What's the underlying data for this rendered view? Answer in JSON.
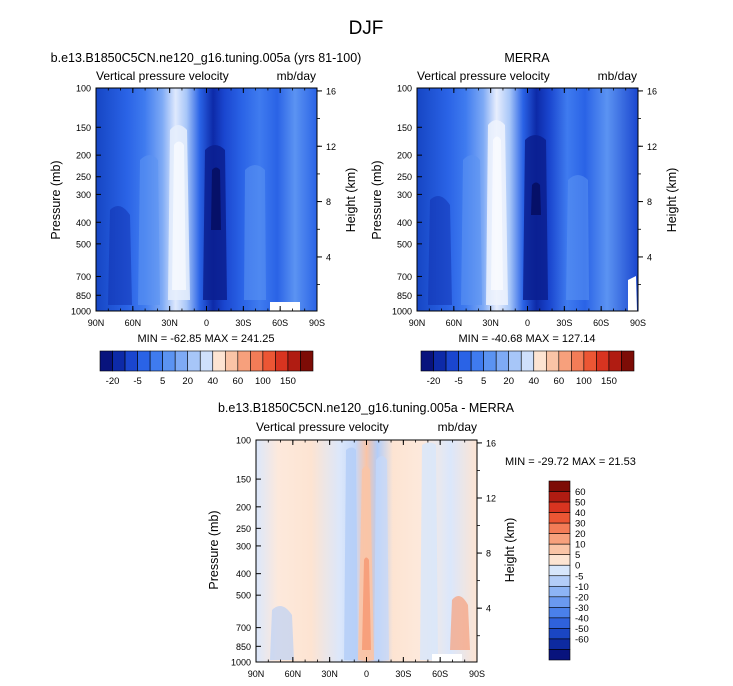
{
  "figure_title": "DJF",
  "chart_data": [
    {
      "type": "heatmap",
      "title": "b.e13.B1850C5CN.ne120_g16.tuning.005a (yrs 81-100)",
      "left_label": "Vertical pressure velocity",
      "right_label": "mb/day",
      "ylabel": "Pressure (mb)",
      "y2label": "Height (km)",
      "x_ticks": [
        "90N",
        "60N",
        "30N",
        "0",
        "30S",
        "60S",
        "90S"
      ],
      "y_ticks": [
        "100",
        "150",
        "200",
        "250",
        "300",
        "400",
        "500",
        "700",
        "850",
        "1000"
      ],
      "height_ticks": [
        "16",
        "12",
        "8",
        "4"
      ],
      "stats": "MIN = -62.85   MAX = 241.25",
      "min": -62.85,
      "max": 241.25
    },
    {
      "type": "heatmap",
      "title": "MERRA",
      "left_label": "Vertical pressure velocity",
      "right_label": "mb/day",
      "ylabel": "Pressure (mb)",
      "y2label": "Height (km)",
      "x_ticks": [
        "90N",
        "60N",
        "30N",
        "0",
        "30S",
        "60S",
        "90S"
      ],
      "y_ticks": [
        "100",
        "150",
        "200",
        "250",
        "300",
        "400",
        "500",
        "700",
        "850",
        "1000"
      ],
      "height_ticks": [
        "16",
        "12",
        "8",
        "4"
      ],
      "stats": "MIN = -40.68   MAX = 127.14",
      "min": -40.68,
      "max": 127.14
    },
    {
      "type": "heatmap",
      "title": "b.e13.B1850C5CN.ne120_g16.tuning.005a - MERRA",
      "left_label": "Vertical pressure velocity",
      "right_label": "mb/day",
      "ylabel": "Pressure (mb)",
      "y2label": "Height (km)",
      "x_ticks": [
        "90N",
        "60N",
        "30N",
        "0",
        "30S",
        "60S",
        "90S"
      ],
      "y_ticks": [
        "100",
        "150",
        "200",
        "250",
        "300",
        "400",
        "500",
        "700",
        "850",
        "1000"
      ],
      "height_ticks": [
        "16",
        "12",
        "8",
        "4"
      ],
      "stats": "MIN = -29.72  MAX =  21.53",
      "min": -29.72,
      "max": 21.53
    }
  ],
  "colorbar_top": {
    "labels": [
      "-20",
      "-5",
      "5",
      "20",
      "40",
      "60",
      "100",
      "150"
    ],
    "colors": [
      "#08137d",
      "#0d2aa8",
      "#1a46cf",
      "#2a63e6",
      "#3f7bef",
      "#5b93f2",
      "#7eaaf5",
      "#a7c6f8",
      "#cfe0fb",
      "#fde4d2",
      "#fac4a6",
      "#f7a07c",
      "#f37c57",
      "#ec5634",
      "#d83420",
      "#b01c12",
      "#7d0c06"
    ]
  },
  "colorbar_diff": {
    "labels": [
      "60",
      "50",
      "40",
      "30",
      "20",
      "10",
      "5",
      "0",
      "-5",
      "-10",
      "-20",
      "-30",
      "-40",
      "-50",
      "-60"
    ],
    "colors": [
      "#7d0c06",
      "#b01c12",
      "#d83420",
      "#ec5634",
      "#f37c57",
      "#f7a07c",
      "#fac4a6",
      "#fde4d2",
      "#d7e6fb",
      "#b3cdf8",
      "#8db4f5",
      "#6a99f0",
      "#4a80ea",
      "#2f62dc",
      "#1a46c3",
      "#0d2aa0",
      "#08137d"
    ]
  }
}
